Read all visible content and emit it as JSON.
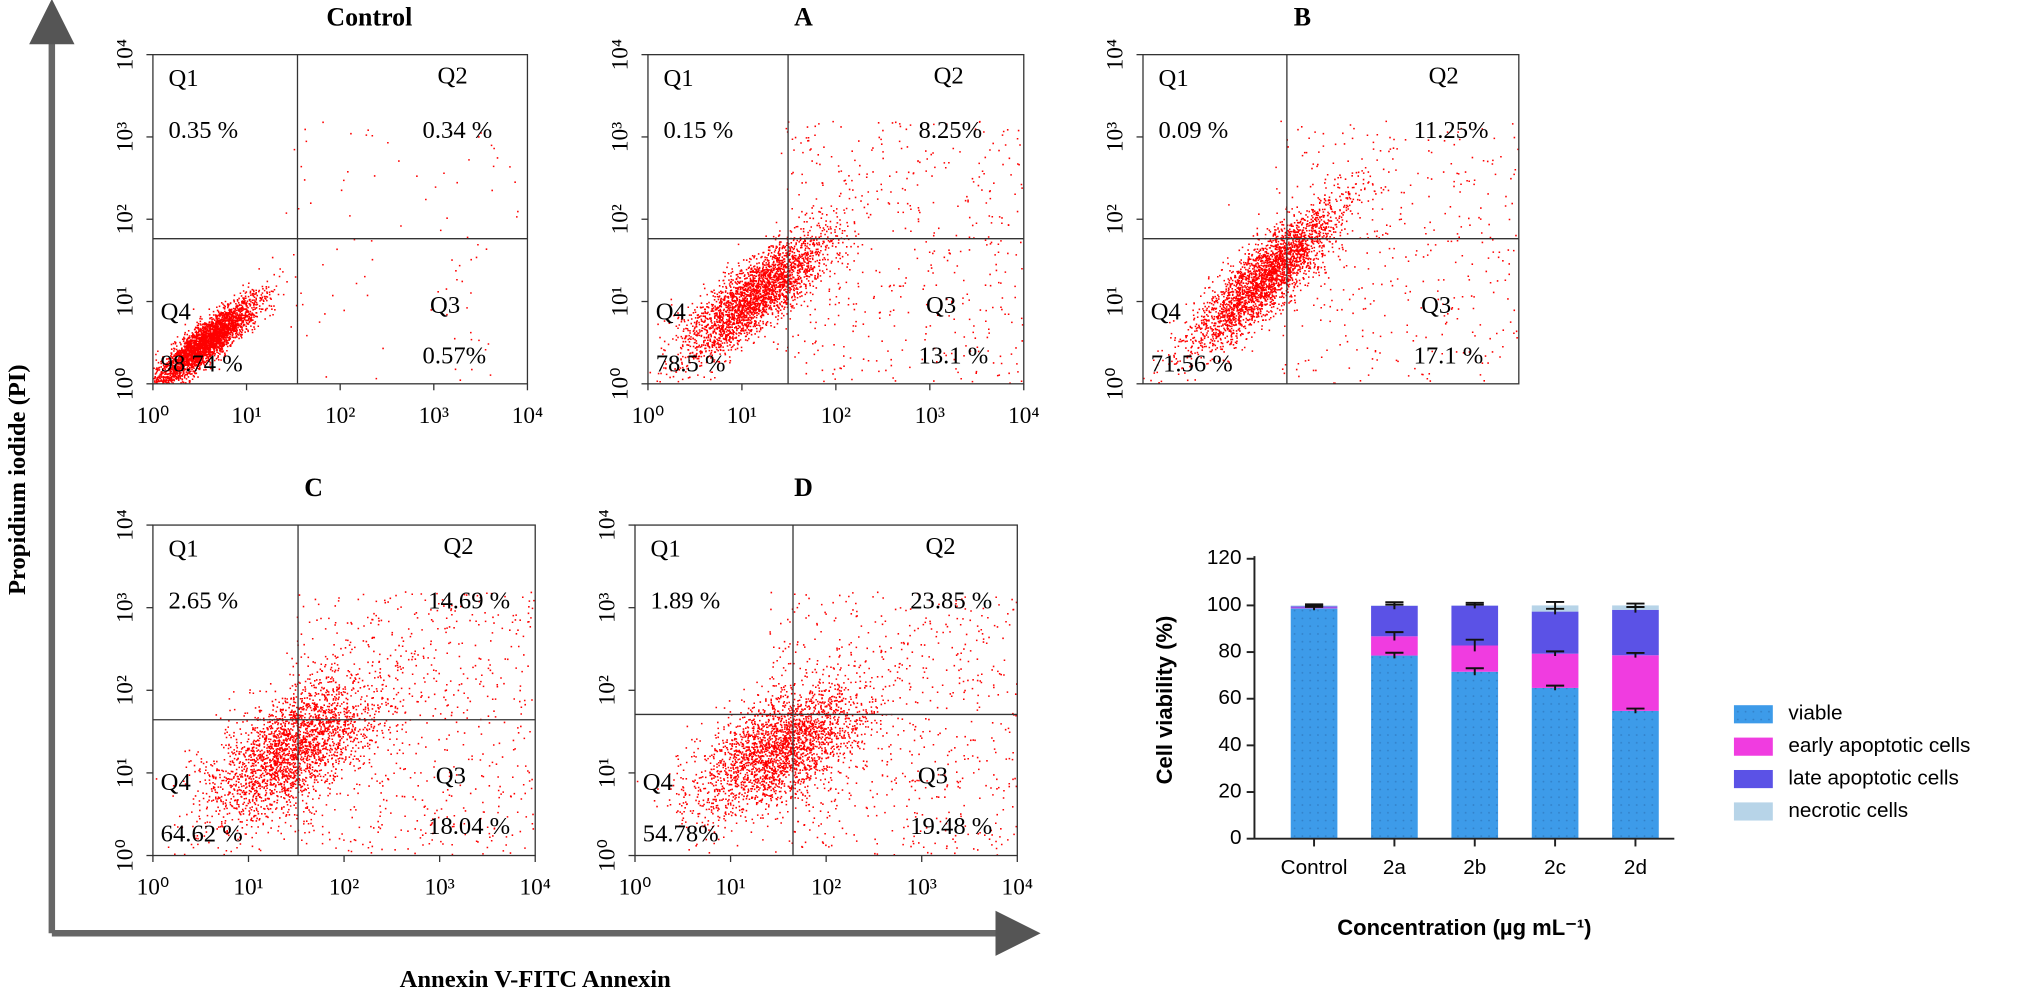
{
  "figure": {
    "ylabel": "Propidium iodide (PI)",
    "xlabel": "Annexin V-FITC Annexin"
  },
  "chart_data": [
    {
      "type": "quadrant",
      "title": "Control",
      "xscale": "log",
      "yscale": "log",
      "xlim": [
        1,
        10000
      ],
      "ylim": [
        1,
        10000
      ],
      "xticks": [
        {
          "value": 1,
          "label": "10⁰"
        },
        {
          "value": 10,
          "label": "10¹"
        },
        {
          "value": 100,
          "label": "10²"
        },
        {
          "value": 1000,
          "label": "10³"
        },
        {
          "value": 10000,
          "label": "10⁴"
        }
      ],
      "yticks": [
        {
          "value": 1,
          "label": "10⁰"
        },
        {
          "value": 10,
          "label": "10¹"
        },
        {
          "value": 100,
          "label": "10²"
        },
        {
          "value": 1000,
          "label": "10³"
        },
        {
          "value": 10000,
          "label": "10⁴"
        }
      ],
      "gate": {
        "x": 35,
        "y": 58
      },
      "quadrants": [
        "Q1",
        "Q2",
        "Q3",
        "Q4"
      ],
      "values": [
        0.35,
        0.34,
        0.57,
        98.74
      ],
      "value_labels": [
        "0.35 %",
        "0.34 %",
        "0.57%",
        "98.74 %"
      ],
      "color": "#ff0000"
    },
    {
      "type": "quadrant",
      "title": "A",
      "xscale": "log",
      "yscale": "log",
      "xlim": [
        1,
        10000
      ],
      "ylim": [
        1,
        10000
      ],
      "xticks": [
        {
          "value": 1,
          "label": "10⁰"
        },
        {
          "value": 10,
          "label": "10¹"
        },
        {
          "value": 100,
          "label": "10²"
        },
        {
          "value": 1000,
          "label": "10³"
        },
        {
          "value": 10000,
          "label": "10⁴"
        }
      ],
      "yticks": [
        {
          "value": 1,
          "label": "10⁰"
        },
        {
          "value": 10,
          "label": "10¹"
        },
        {
          "value": 100,
          "label": "10²"
        },
        {
          "value": 1000,
          "label": "10³"
        },
        {
          "value": 10000,
          "label": "10⁴"
        }
      ],
      "gate": {
        "x": 31,
        "y": 58
      },
      "quadrants": [
        "Q1",
        "Q2",
        "Q3",
        "Q4"
      ],
      "values": [
        0.15,
        8.25,
        13.1,
        78.5
      ],
      "value_labels": [
        "0.15 %",
        "8.25%",
        "13.1 %",
        "78.5 %"
      ],
      "color": "#ff0000"
    },
    {
      "type": "quadrant",
      "title": "B",
      "xscale": "log",
      "yscale": "log",
      "xlim": [
        1,
        10000
      ],
      "ylim": [
        1,
        10000
      ],
      "yticks": [
        {
          "value": 1,
          "label": "10⁰"
        },
        {
          "value": 10,
          "label": "10¹"
        },
        {
          "value": 100,
          "label": "10²"
        },
        {
          "value": 1000,
          "label": "10³"
        },
        {
          "value": 10000,
          "label": "10⁴"
        }
      ],
      "gate": {
        "x": 34,
        "y": 58
      },
      "quadrants": [
        "Q1",
        "Q2",
        "Q3",
        "Q4"
      ],
      "values": [
        0.09,
        11.25,
        17.1,
        71.56
      ],
      "value_labels": [
        "0.09 %",
        "11.25%",
        "17.1 %",
        "71.56 %"
      ],
      "color": "#ff0000"
    },
    {
      "type": "quadrant",
      "title": "C",
      "xscale": "log",
      "yscale": "log",
      "xlim": [
        1,
        10000
      ],
      "ylim": [
        1,
        10000
      ],
      "xticks": [
        {
          "value": 1,
          "label": "10⁰"
        },
        {
          "value": 10,
          "label": "10¹"
        },
        {
          "value": 100,
          "label": "10²"
        },
        {
          "value": 1000,
          "label": "10³"
        },
        {
          "value": 10000,
          "label": "10⁴"
        }
      ],
      "yticks": [
        {
          "value": 1,
          "label": "10⁰"
        },
        {
          "value": 10,
          "label": "10¹"
        },
        {
          "value": 100,
          "label": "10²"
        },
        {
          "value": 1000,
          "label": "10³"
        },
        {
          "value": 10000,
          "label": "10⁴"
        }
      ],
      "gate": {
        "x": 33,
        "y": 44
      },
      "quadrants": [
        "Q1",
        "Q2",
        "Q3",
        "Q4"
      ],
      "values": [
        2.65,
        14.69,
        18.04,
        64.62
      ],
      "value_labels": [
        "2.65 %",
        "14.69 %",
        "18.04 %",
        "64.62 %"
      ],
      "color": "#ff0000"
    },
    {
      "type": "quadrant",
      "title": "D",
      "xscale": "log",
      "yscale": "log",
      "xlim": [
        1,
        10000
      ],
      "ylim": [
        1,
        10000
      ],
      "xticks": [
        {
          "value": 1,
          "label": "10⁰"
        },
        {
          "value": 10,
          "label": "10¹"
        },
        {
          "value": 100,
          "label": "10²"
        },
        {
          "value": 1000,
          "label": "10³"
        },
        {
          "value": 10000,
          "label": "10⁴"
        }
      ],
      "yticks": [
        {
          "value": 1,
          "label": "10⁰"
        },
        {
          "value": 10,
          "label": "10¹"
        },
        {
          "value": 100,
          "label": "10²"
        },
        {
          "value": 1000,
          "label": "10³"
        },
        {
          "value": 10000,
          "label": "10⁴"
        }
      ],
      "gate": {
        "x": 45,
        "y": 51
      },
      "quadrants": [
        "Q1",
        "Q2",
        "Q3",
        "Q4"
      ],
      "values": [
        1.89,
        23.85,
        19.48,
        54.78
      ],
      "value_labels": [
        "1.89 %",
        "23.85 %",
        "19.48 %",
        "54.78%"
      ],
      "color": "#ff0000"
    },
    {
      "type": "stacked_bar",
      "ylabel": "Cell viability (%)",
      "xlabel": "Concentration (µg mL⁻¹)",
      "categories": [
        "Control",
        "2a",
        "2b",
        "2c",
        "2d"
      ],
      "ylim": [
        0,
        120
      ],
      "yticks": [
        0,
        20,
        40,
        60,
        80,
        100,
        120
      ],
      "legend": "right",
      "series": [
        {
          "name": "viable",
          "color": "#3d9be9",
          "values": [
            98.74,
            78.5,
            71.56,
            64.62,
            54.78
          ],
          "errors": [
            0.8,
            1.2,
            1.5,
            1.0,
            1.0
          ]
        },
        {
          "name": "early apoptotic cells",
          "color": "#f03ce0",
          "values": [
            0.34,
            8.25,
            11.25,
            14.69,
            23.85
          ],
          "errors": [
            0.3,
            1.8,
            2.5,
            1.0,
            1.0
          ]
        },
        {
          "name": "late apoptotic cells",
          "color": "#5b52e6",
          "values": [
            0.57,
            13.1,
            17.1,
            18.04,
            19.48
          ],
          "errors": [
            0.8,
            1.5,
            1.2,
            1.2,
            1.2
          ]
        },
        {
          "name": "necrotic cells",
          "color": "#b7d4e8",
          "values": [
            0.35,
            0.15,
            0.09,
            2.65,
            1.89
          ],
          "errors": [
            0.3,
            0.3,
            0.3,
            1.5,
            0.8
          ]
        }
      ]
    }
  ]
}
